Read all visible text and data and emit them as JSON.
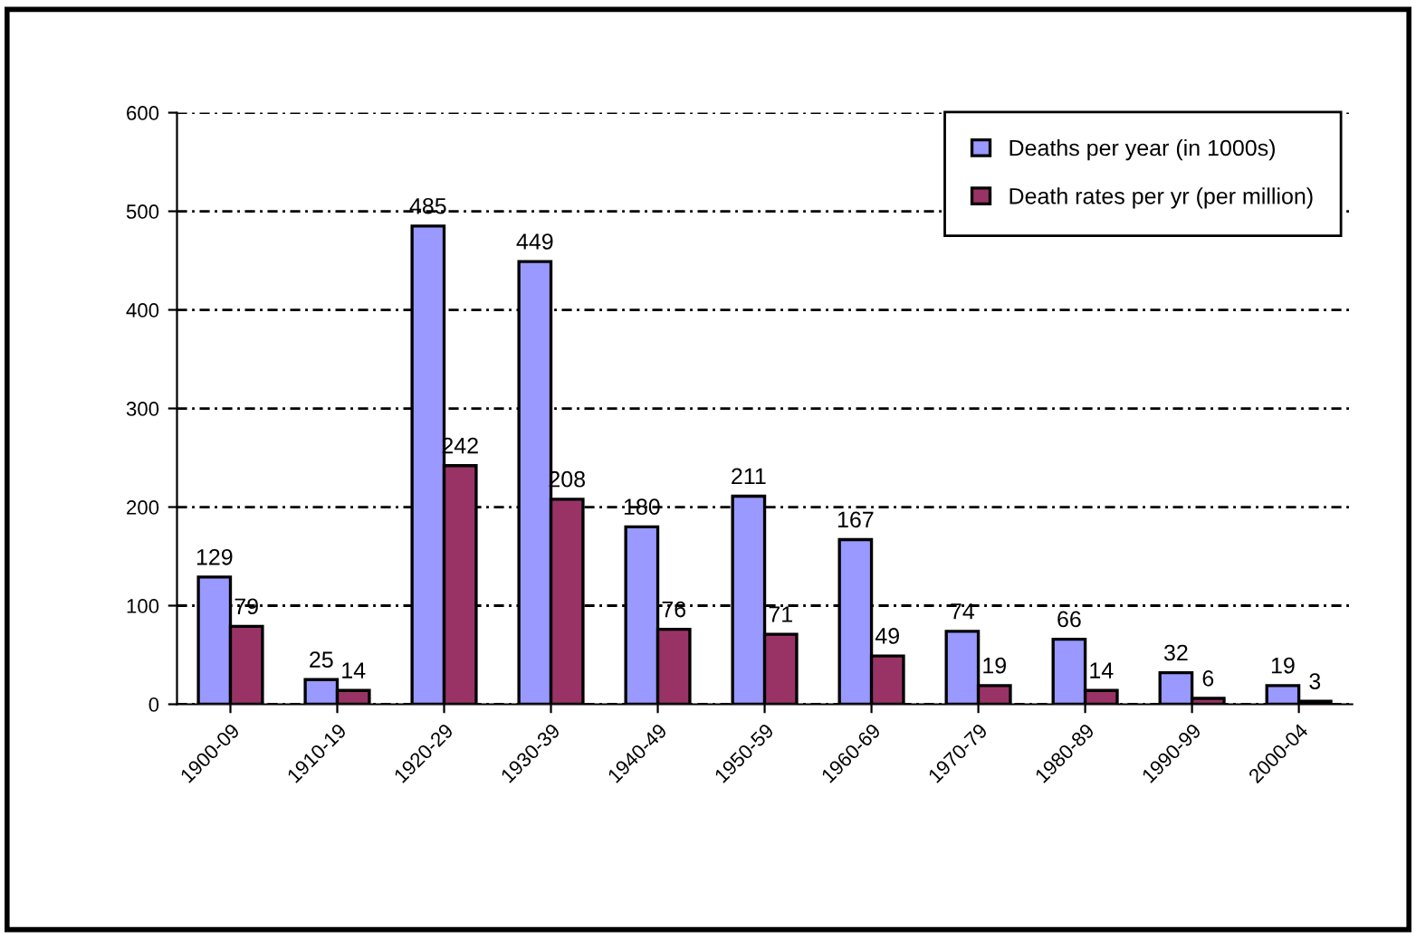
{
  "chart_data": {
    "type": "bar",
    "categories": [
      "1900-09",
      "1910-19",
      "1920-29",
      "1930-39",
      "1940-49",
      "1950-59",
      "1960-69",
      "1970-79",
      "1980-89",
      "1990-99",
      "2000-04"
    ],
    "series": [
      {
        "name": "Deaths per year (in 1000s)",
        "color": "#9999ff",
        "values": [
          129,
          25,
          485,
          449,
          180,
          211,
          167,
          74,
          66,
          32,
          19
        ]
      },
      {
        "name": "Death rates per yr (per million)",
        "color": "#993366",
        "values": [
          79,
          14,
          242,
          208,
          76,
          71,
          49,
          19,
          14,
          6,
          3
        ]
      }
    ],
    "ylim": [
      0,
      600
    ],
    "yticks": [
      0,
      100,
      200,
      300,
      400,
      500,
      600
    ],
    "grid": "y",
    "legend": "top right",
    "data_labels": true
  }
}
